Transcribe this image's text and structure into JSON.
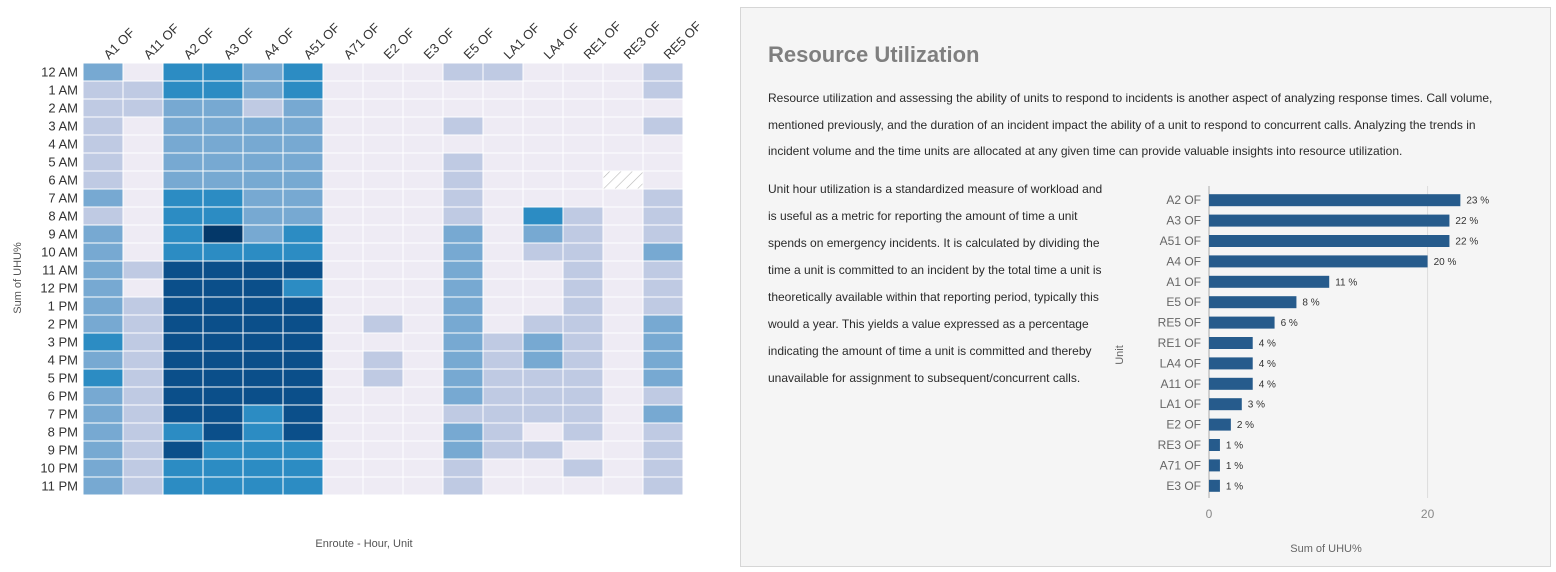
{
  "chart_data": [
    {
      "type": "heatmap",
      "x_categories": [
        "A1 OF",
        "A11 OF",
        "A2 OF",
        "A3 OF",
        "A4 OF",
        "A51 OF",
        "A71 OF",
        "E2 OF",
        "E3 OF",
        "E5 OF",
        "LA1 OF",
        "LA4 OF",
        "RE1 OF",
        "RE3 OF",
        "RE5 OF"
      ],
      "y_categories": [
        "12 AM",
        "1 AM",
        "2 AM",
        "3 AM",
        "4 AM",
        "5 AM",
        "6 AM",
        "7 AM",
        "8 AM",
        "9 AM",
        "10 AM",
        "11 AM",
        "12 PM",
        "1 PM",
        "2 PM",
        "3 PM",
        "4 PM",
        "5 PM",
        "6 PM",
        "7 PM",
        "8 PM",
        "9 PM",
        "10 PM",
        "11 PM"
      ],
      "values": [
        [
          3,
          0,
          4,
          4,
          3,
          4,
          0,
          0,
          0,
          1,
          1,
          0,
          0,
          0,
          1
        ],
        [
          1,
          1,
          4,
          4,
          3,
          4,
          0,
          0,
          0,
          0,
          0,
          0,
          0,
          0,
          1
        ],
        [
          1,
          1,
          3,
          3,
          1,
          3,
          0,
          0,
          0,
          0,
          0,
          0,
          0,
          0,
          0
        ],
        [
          1,
          0,
          3,
          3,
          3,
          3,
          0,
          0,
          0,
          1,
          0,
          0,
          0,
          0,
          1
        ],
        [
          1,
          0,
          3,
          3,
          3,
          3,
          0,
          0,
          0,
          0,
          0,
          0,
          0,
          0,
          0
        ],
        [
          1,
          0,
          3,
          3,
          3,
          3,
          0,
          0,
          0,
          1,
          0,
          0,
          0,
          0,
          0
        ],
        [
          1,
          0,
          3,
          3,
          3,
          3,
          0,
          0,
          0,
          1,
          0,
          0,
          0,
          null,
          0
        ],
        [
          3,
          0,
          4,
          4,
          3,
          3,
          0,
          0,
          0,
          1,
          0,
          0,
          0,
          0,
          1
        ],
        [
          1,
          0,
          4,
          4,
          3,
          3,
          0,
          0,
          0,
          1,
          0,
          4,
          1,
          0,
          1
        ],
        [
          3,
          0,
          4,
          6,
          3,
          4,
          0,
          0,
          0,
          3,
          0,
          3,
          1,
          0,
          1
        ],
        [
          3,
          0,
          4,
          4,
          4,
          4,
          0,
          0,
          0,
          3,
          0,
          1,
          1,
          0,
          3
        ],
        [
          3,
          1,
          5,
          5,
          5,
          5,
          0,
          0,
          0,
          3,
          0,
          0,
          1,
          0,
          1
        ],
        [
          3,
          0,
          5,
          5,
          5,
          4,
          0,
          0,
          0,
          3,
          0,
          0,
          1,
          0,
          1
        ],
        [
          3,
          1,
          5,
          5,
          5,
          5,
          0,
          0,
          0,
          3,
          0,
          0,
          1,
          0,
          1
        ],
        [
          3,
          1,
          5,
          5,
          5,
          5,
          0,
          1,
          0,
          3,
          0,
          1,
          1,
          0,
          3
        ],
        [
          4,
          1,
          5,
          5,
          5,
          5,
          0,
          0,
          0,
          3,
          1,
          3,
          1,
          0,
          3
        ],
        [
          3,
          1,
          5,
          5,
          5,
          5,
          0,
          1,
          0,
          3,
          1,
          3,
          1,
          0,
          3
        ],
        [
          4,
          1,
          5,
          5,
          5,
          5,
          0,
          1,
          0,
          3,
          1,
          1,
          1,
          0,
          3
        ],
        [
          3,
          1,
          5,
          5,
          5,
          5,
          0,
          0,
          0,
          3,
          1,
          1,
          1,
          0,
          1
        ],
        [
          3,
          1,
          5,
          5,
          4,
          5,
          0,
          0,
          0,
          1,
          1,
          1,
          1,
          0,
          3
        ],
        [
          3,
          1,
          4,
          5,
          4,
          5,
          0,
          0,
          0,
          3,
          1,
          0,
          1,
          0,
          1
        ],
        [
          3,
          1,
          5,
          4,
          4,
          4,
          0,
          0,
          0,
          3,
          1,
          1,
          0,
          0,
          1
        ],
        [
          3,
          1,
          4,
          4,
          4,
          4,
          0,
          0,
          0,
          1,
          0,
          0,
          1,
          0,
          1
        ],
        [
          3,
          1,
          4,
          4,
          4,
          4,
          0,
          0,
          0,
          1,
          0,
          0,
          0,
          0,
          1
        ]
      ],
      "xlabel": "Enroute - Hour, Unit",
      "ylabel": "Sum of UHU%",
      "colors": [
        "#eeebf4",
        "#bfcae3",
        "#c3cde4",
        "#77a9d2",
        "#2c8cc3",
        "#0b4f8a",
        "#043869"
      ]
    },
    {
      "type": "bar",
      "orientation": "horizontal",
      "categories": [
        "A2 OF",
        "A3 OF",
        "A51 OF",
        "A4 OF",
        "A1 OF",
        "E5 OF",
        "RE5 OF",
        "RE1 OF",
        "LA4 OF",
        "A11 OF",
        "LA1 OF",
        "E2 OF",
        "RE3 OF",
        "A71 OF",
        "E3 OF"
      ],
      "values": [
        23,
        22,
        22,
        20,
        11,
        8,
        6,
        4,
        4,
        4,
        3,
        2,
        1,
        1,
        1
      ],
      "value_labels": [
        "23 %",
        "22 %",
        "22 %",
        "20 %",
        "11 %",
        "8 %",
        "6 %",
        "4 %",
        "4 %",
        "4 %",
        "3 %",
        "2 %",
        "1 %",
        "1 %",
        "1 %"
      ],
      "xlabel": "Sum of UHU%",
      "ylabel": "Unit",
      "xticks": [
        "0",
        "20"
      ],
      "xlim": [
        0,
        28
      ],
      "bar_color": "#265b8c"
    }
  ],
  "panel": {
    "title": "Resource Utilization",
    "intro": "Resource utilization and assessing the ability of units to respond to incidents is another aspect of analyzing response times. Call volume, mentioned previously, and the duration of an incident impact the ability of a unit to respond to concurrent calls. Analyzing the trends in incident volume and the time units are allocated at any given time can provide valuable insights into resource utilization.",
    "detail": "Unit hour utilization is a standardized measure of workload and is useful as a metric for reporting the amount of time a unit spends on emergency incidents. It is calculated by dividing the time a unit is committed to an incident by the total time a unit is theoretically available within that reporting period, typically this would a year. This yields a value expressed as a percentage indicating the amount of time a unit is committed and thereby unavailable for assignment to subsequent/concurrent calls."
  }
}
